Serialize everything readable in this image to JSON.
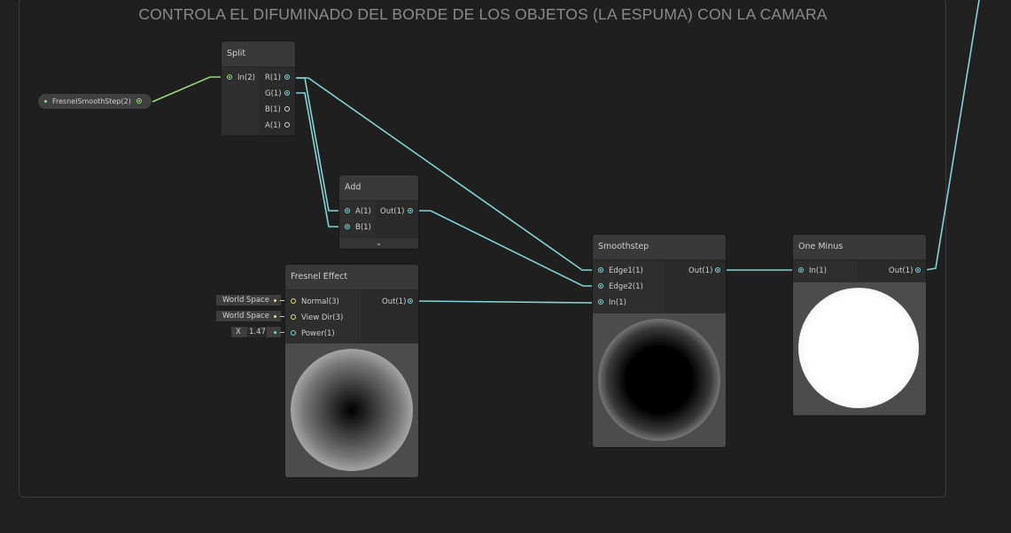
{
  "group": {
    "title": "CONTROLA EL DIFUMINADO DEL BORDE DE LOS OBJETOS (LA ESPUMA) CON LA CAMARA"
  },
  "property": {
    "label": "FresnelSmoothStep(2)"
  },
  "nodes": {
    "split": {
      "title": "Split",
      "input": "In(2)",
      "outputs": [
        "R(1)",
        "G(1)",
        "B(1)",
        "A(1)"
      ]
    },
    "add": {
      "title": "Add",
      "inputs": [
        "A(1)",
        "B(1)"
      ],
      "output": "Out(1)",
      "collapse_glyph": "⌄"
    },
    "fresnel": {
      "title": "Fresnel Effect",
      "inputs": [
        "Normal(3)",
        "View Dir(3)",
        "Power(1)"
      ],
      "output": "Out(1)",
      "fields": {
        "normal": "World Space",
        "view_dir": "World Space",
        "power_axis": "X",
        "power_value": "1.47"
      }
    },
    "smoothstep": {
      "title": "Smoothstep",
      "inputs": [
        "Edge1(1)",
        "Edge2(1)",
        "In(1)"
      ],
      "output": "Out(1)"
    },
    "one_minus": {
      "title": "One Minus",
      "input": "In(1)",
      "output": "Out(1)"
    }
  },
  "colors": {
    "background": "#202020",
    "wire_vector1": "#84d4d4",
    "wire_vector2": "#9bd67f",
    "port_vector3": "#e4e08a"
  },
  "icons": {
    "port": "port-circle-icon",
    "collapse": "chevron-down-icon"
  }
}
